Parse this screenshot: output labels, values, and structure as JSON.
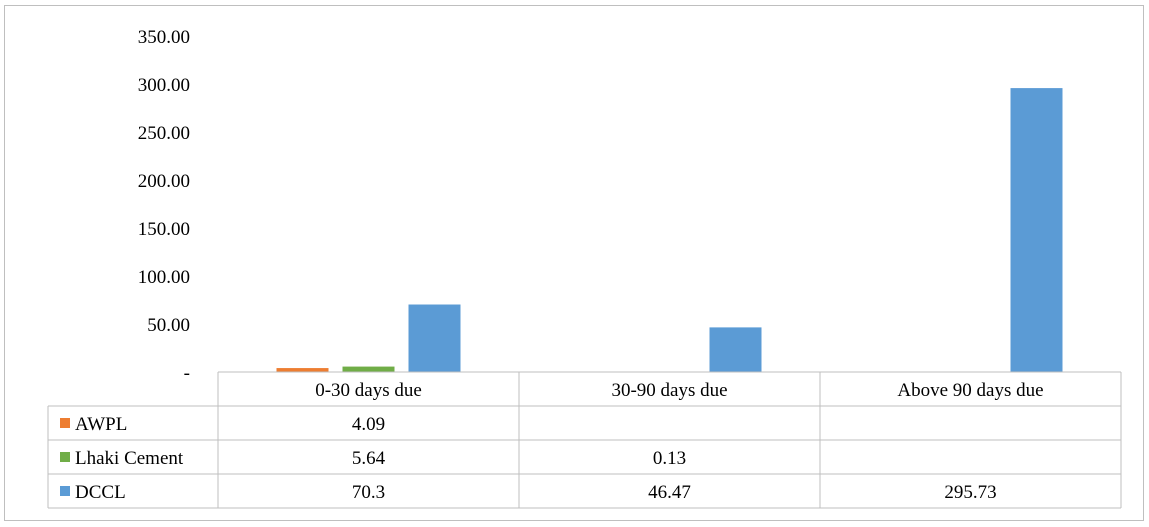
{
  "chart_data": {
    "type": "bar",
    "categories": [
      "0-30 days due",
      "30-90 days due",
      "Above 90 days due"
    ],
    "series": [
      {
        "name": "AWPL",
        "color": "#ed7d31",
        "values": [
          4.09,
          null,
          null
        ],
        "labels": [
          "4.09",
          "",
          ""
        ]
      },
      {
        "name": "Lhaki Cement",
        "color": "#70ad47",
        "values": [
          5.64,
          0.13,
          null
        ],
        "labels": [
          "5.64",
          "0.13",
          ""
        ]
      },
      {
        "name": "DCCL",
        "color": "#5b9bd5",
        "values": [
          70.3,
          46.47,
          295.73
        ],
        "labels": [
          "70.3",
          "46.47",
          "295.73"
        ]
      }
    ],
    "y_ticks": [
      "-",
      "50.00",
      "100.00",
      "150.00",
      "200.00",
      "250.00",
      "300.00",
      "350.00"
    ],
    "ylim": [
      0,
      350
    ],
    "grid": false,
    "legend": "data-table"
  }
}
